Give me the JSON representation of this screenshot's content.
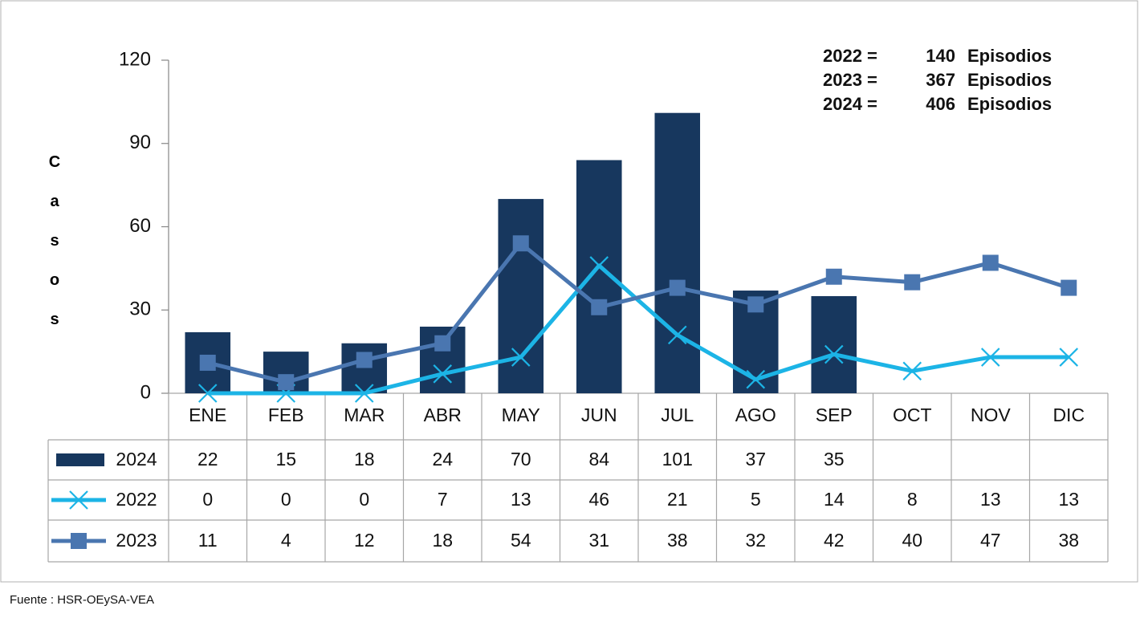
{
  "chart_data": {
    "type": "bar-line",
    "y_label": "Casos",
    "categories": [
      "ENE",
      "FEB",
      "MAR",
      "ABR",
      "MAY",
      "JUN",
      "JUL",
      "AGO",
      "SEP",
      "OCT",
      "NOV",
      "DIC"
    ],
    "series": [
      {
        "name": "2024",
        "type": "bar",
        "color": "#17375e",
        "values": [
          22,
          15,
          18,
          24,
          70,
          84,
          101,
          37,
          35,
          null,
          null,
          null
        ]
      },
      {
        "name": "2022",
        "type": "line",
        "marker": "x",
        "color": "#1cb4e6",
        "values": [
          0,
          0,
          0,
          7,
          13,
          46,
          21,
          5,
          14,
          8,
          13,
          13
        ]
      },
      {
        "name": "2023",
        "type": "line",
        "marker": "square",
        "color": "#4a76b0",
        "values": [
          11,
          4,
          12,
          18,
          54,
          31,
          38,
          32,
          42,
          40,
          47,
          38
        ]
      }
    ],
    "ylim": [
      0,
      120
    ],
    "yticks": [
      0,
      30,
      60,
      90,
      120
    ],
    "annotations": [
      {
        "label": "2022 =",
        "value": 140,
        "unit": "Episodios"
      },
      {
        "label": "2023 =",
        "value": 367,
        "unit": "Episodios"
      },
      {
        "label": "2024 =",
        "value": 406,
        "unit": "Episodios"
      }
    ],
    "source": "Fuente : HSR-OEySA-VEA"
  }
}
